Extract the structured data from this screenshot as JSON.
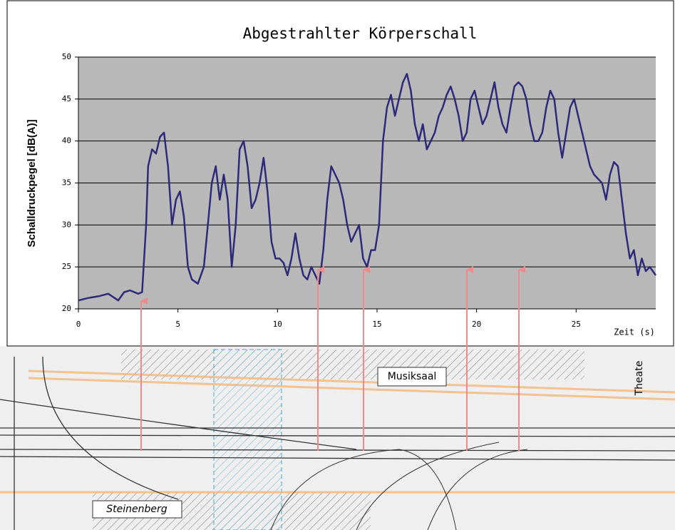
{
  "chart_data": {
    "type": "line",
    "title": "Abgestrahlter Körperschall",
    "y_label": "Schalldruckpegel  [dB(A)]",
    "x_label": "Zeit (s)",
    "x": [
      0,
      0.5,
      1,
      1.5,
      2,
      2.3,
      2.6,
      3,
      3.2,
      3.4,
      3.5,
      3.7,
      3.9,
      4.1,
      4.3,
      4.5,
      4.7,
      4.9,
      5.1,
      5.3,
      5.5,
      5.7,
      6,
      6.3,
      6.5,
      6.7,
      6.9,
      7.1,
      7.3,
      7.5,
      7.7,
      7.9,
      8.1,
      8.3,
      8.5,
      8.7,
      8.9,
      9.1,
      9.3,
      9.5,
      9.7,
      9.9,
      10.1,
      10.3,
      10.5,
      10.7,
      10.9,
      11.1,
      11.3,
      11.5,
      11.7,
      11.9,
      12.1,
      12.3,
      12.5,
      12.7,
      12.9,
      13.1,
      13.3,
      13.5,
      13.7,
      13.9,
      14.1,
      14.3,
      14.5,
      14.7,
      14.9,
      15.1,
      15.3,
      15.5,
      15.7,
      15.9,
      16.1,
      16.3,
      16.5,
      16.7,
      16.9,
      17.1,
      17.3,
      17.5,
      17.7,
      17.9,
      18.1,
      18.3,
      18.5,
      18.7,
      18.9,
      19.1,
      19.3,
      19.5,
      19.7,
      19.9,
      20.1,
      20.3,
      20.5,
      20.7,
      20.9,
      21.1,
      21.3,
      21.5,
      21.7,
      21.9,
      22.1,
      22.3,
      22.5,
      22.7,
      22.9,
      23.1,
      23.3,
      23.5,
      23.7,
      23.9,
      24.1,
      24.3,
      24.5,
      24.7,
      24.9,
      25.1,
      25.3,
      25.5,
      25.7,
      25.9,
      26.1,
      26.3,
      26.5,
      26.7,
      26.9,
      27.1,
      27.3,
      27.5,
      27.7,
      27.9,
      28.1,
      28.3,
      28.5,
      28.7,
      29
    ],
    "series": [
      {
        "name": "Schalldruckpegel",
        "color": "#2e2a7a",
        "values": [
          21,
          21.3,
          21.5,
          21.8,
          21,
          22,
          22.2,
          21.8,
          22,
          30,
          37,
          39,
          38.5,
          40.5,
          41,
          37,
          30,
          33,
          34,
          31,
          25,
          23.5,
          23,
          25,
          30,
          35,
          37,
          33,
          36,
          33,
          25,
          30,
          39,
          40,
          37,
          32,
          33,
          35,
          38,
          34,
          28,
          26,
          26,
          25.5,
          24,
          26,
          29,
          26,
          24,
          23.5,
          25,
          24,
          23,
          27,
          33,
          37,
          36,
          35,
          33,
          30,
          28,
          29,
          30,
          26,
          25,
          27,
          27,
          30,
          40,
          44,
          45.5,
          43,
          45,
          47,
          48,
          46,
          42,
          40,
          42,
          39,
          40,
          41,
          43,
          44,
          45.5,
          46.5,
          45,
          43,
          40,
          41,
          45,
          46,
          44,
          42,
          43,
          45,
          47,
          44,
          42,
          41,
          44,
          46.5,
          47,
          46.5,
          45,
          42,
          40,
          40,
          41,
          44,
          46,
          45,
          41,
          38,
          41,
          44,
          45,
          43,
          41,
          39,
          37,
          36,
          35.5,
          35,
          33,
          36,
          37.5,
          37,
          33,
          29,
          26,
          27,
          24,
          26,
          24.5,
          25,
          24
        ]
      }
    ],
    "xlim": [
      0,
      29
    ],
    "ylim": [
      20,
      50
    ],
    "xticks": [
      0,
      5,
      10,
      15,
      20,
      25
    ],
    "yticks": [
      20,
      25,
      30,
      35,
      40,
      45,
      50
    ],
    "grid": true
  },
  "map": {
    "labels": [
      "Musiksaal",
      "Theate",
      "Steinenberg"
    ]
  }
}
